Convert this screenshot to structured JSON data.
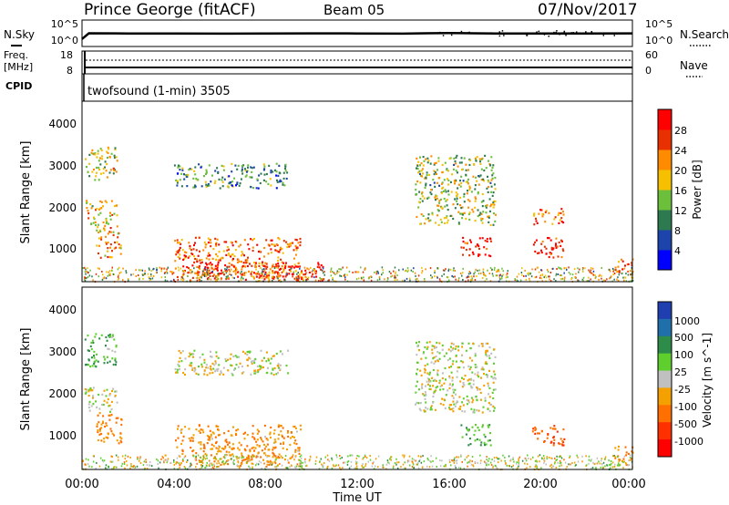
{
  "header": {
    "title": "Prince George (fitACF)",
    "beam": "Beam 05",
    "date": "07/Nov/2017"
  },
  "noise_panel": {
    "left_label": "N.Sky",
    "right_label": "N.Search",
    "left_ticks": [
      "10^5",
      "10^0"
    ],
    "right_ticks": [
      "10^5",
      "10^0"
    ]
  },
  "freq_panel": {
    "left_label_1": "Freq.",
    "left_label_2": "[MHz]",
    "left_ticks": [
      "18",
      "8"
    ],
    "right_label": "Nave",
    "right_ticks": [
      "60",
      "0"
    ]
  },
  "cpid_panel": {
    "label": "CPID",
    "program": "twofsound (1-min) 3505"
  },
  "power_panel": {
    "ylabel": "Slant Range [km]",
    "yticks": [
      "4000",
      "3000",
      "2000",
      "1000"
    ],
    "colorbar_label": "Power [dB]",
    "colorbar_ticks": [
      "28",
      "24",
      "20",
      "16",
      "12",
      "8",
      "4"
    ],
    "colors": [
      "#0000ff",
      "#1c44aa",
      "#2e7a50",
      "#6cbf3a",
      "#f6c000",
      "#ff8c00",
      "#e83000",
      "#ff0000"
    ]
  },
  "velocity_panel": {
    "ylabel": "Slant Range [km]",
    "yticks": [
      "4000",
      "3000",
      "2000",
      "1000"
    ],
    "colorbar_label": "Velocity [m s^-1]",
    "colorbar_ticks": [
      "1000",
      "500",
      "100",
      "25",
      "-25",
      "-100",
      "-500",
      "-1000"
    ],
    "colors": [
      "#1f3fb0",
      "#1f6faa",
      "#2e8c4a",
      "#5fcf2e",
      "#c0c0c0",
      "#f3a000",
      "#ff7000",
      "#ff3000",
      "#ff0000"
    ]
  },
  "xaxis": {
    "ticks": [
      "00:00",
      "04:00",
      "08:00",
      "12:00",
      "16:00",
      "20:00",
      "00:00"
    ],
    "label": "Time UT"
  },
  "chart_data": [
    {
      "type": "line",
      "title": "Prince George (fitACF)",
      "ylabel": "N.Sky / N.Search",
      "x_hours": [
        0,
        0.3,
        2,
        4,
        6,
        8,
        10,
        12,
        14,
        15,
        16,
        17,
        18,
        20,
        22,
        24
      ],
      "values": [
        10,
        900,
        800,
        750,
        700,
        800,
        850,
        800,
        700,
        900,
        1100,
        900,
        800,
        750,
        800,
        850
      ]
    },
    {
      "type": "line",
      "ylabel": "Freq. [MHz] / Nave",
      "x_hours": [
        0,
        0.3,
        24
      ],
      "series": [
        {
          "name": "Freq.",
          "values": [
            9,
            9,
            9
          ]
        },
        {
          "name": "Nave",
          "values": [
            30,
            30,
            30
          ]
        }
      ]
    },
    {
      "type": "heatmap",
      "title": "Power [dB]",
      "xlabel": "Time UT",
      "ylabel": "Slant Range [km]",
      "xlim_hours": [
        0,
        24
      ],
      "ylim_km": [
        200,
        4600
      ],
      "zlim": [
        0,
        30
      ],
      "regions": [
        {
          "t0": 0.1,
          "t1": 1.5,
          "r0": 2700,
          "r1": 3500,
          "value": 16
        },
        {
          "t0": 0.1,
          "t1": 1.5,
          "r0": 1600,
          "r1": 2200,
          "value": 18
        },
        {
          "t0": 0.6,
          "t1": 1.7,
          "r0": 800,
          "r1": 1600,
          "value": 20
        },
        {
          "t0": 4.0,
          "t1": 9.0,
          "r0": 2500,
          "r1": 3100,
          "value": 10
        },
        {
          "t0": 4.0,
          "t1": 9.5,
          "r0": 300,
          "r1": 1300,
          "value": 22
        },
        {
          "t0": 5.0,
          "t1": 10.5,
          "r0": 250,
          "r1": 700,
          "value": 28
        },
        {
          "t0": 14.5,
          "t1": 18.0,
          "r0": 1600,
          "r1": 3300,
          "value": 14
        },
        {
          "t0": 16.5,
          "t1": 17.8,
          "r0": 800,
          "r1": 1300,
          "value": 28
        },
        {
          "t0": 19.6,
          "t1": 21.0,
          "r0": 1600,
          "r1": 2000,
          "value": 22
        },
        {
          "t0": 19.6,
          "t1": 21.0,
          "r0": 800,
          "r1": 1300,
          "value": 28
        },
        {
          "t0": 23.2,
          "t1": 24.0,
          "r0": 300,
          "r1": 800,
          "value": 24
        }
      ]
    },
    {
      "type": "heatmap",
      "title": "Velocity [m s^-1]",
      "xlabel": "Time UT",
      "ylabel": "Slant Range [km]",
      "xlim_hours": [
        0,
        24
      ],
      "ylim_km": [
        200,
        4600
      ],
      "zlim": [
        -1000,
        1000
      ],
      "regions": [
        {
          "t0": 0.1,
          "t1": 1.5,
          "r0": 2700,
          "r1": 3500,
          "value": 100
        },
        {
          "t0": 0.1,
          "t1": 1.5,
          "r0": 1600,
          "r1": 2200,
          "value": 0
        },
        {
          "t0": 0.6,
          "t1": 1.7,
          "r0": 800,
          "r1": 1600,
          "value": -100
        },
        {
          "t0": 4.0,
          "t1": 9.0,
          "r0": 2500,
          "r1": 3100,
          "value": 0
        },
        {
          "t0": 4.0,
          "t1": 9.5,
          "r0": 300,
          "r1": 1300,
          "value": -100
        },
        {
          "t0": 14.5,
          "t1": 18.0,
          "r0": 1600,
          "r1": 3300,
          "value": 0
        },
        {
          "t0": 16.5,
          "t1": 17.8,
          "r0": 800,
          "r1": 1300,
          "value": 100
        },
        {
          "t0": 19.6,
          "t1": 21.0,
          "r0": 800,
          "r1": 1300,
          "value": -500
        },
        {
          "t0": 23.2,
          "t1": 24.0,
          "r0": 300,
          "r1": 800,
          "value": -100
        }
      ]
    }
  ]
}
